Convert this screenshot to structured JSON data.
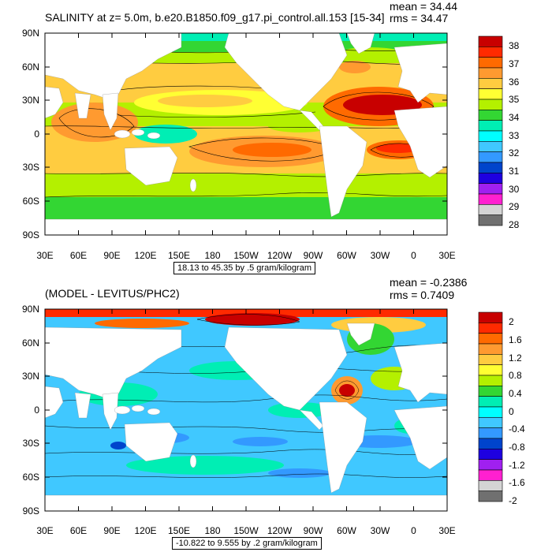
{
  "panels": [
    {
      "title": "SALINITY at z=   5.0m, b.e20.B1850.f09_g17.pi_control.all.153 [15-34]",
      "mean_text": "mean = 34.44",
      "rms_text": "rms = 34.47",
      "contour_info": "18.13 to 45.35 by .5 gram/kilogram",
      "lat_ticks": [
        "90N",
        "60N",
        "30N",
        "0",
        "30S",
        "60S",
        "90S"
      ],
      "lon_ticks": [
        "30E",
        "60E",
        "90E",
        "120E",
        "150E",
        "180",
        "150W",
        "120W",
        "90W",
        "60W",
        "30W",
        "0",
        "30E"
      ],
      "colorbar_labels": [
        "38",
        "37",
        "36",
        "35",
        "34",
        "33",
        "32",
        "31",
        "30",
        "29",
        "28"
      ],
      "colorbar_colors": [
        "#c80000",
        "#ff2a00",
        "#ff6a00",
        "#ff9a30",
        "#ffcc40",
        "#ffff33",
        "#b4f000",
        "#33d633",
        "#00eeb4",
        "#00ffff",
        "#40c8ff",
        "#3399ff",
        "#0044cc",
        "#1e00e0",
        "#a020f0",
        "#ff20d0",
        "#d4d4d4",
        "#707070"
      ]
    },
    {
      "title": "(MODEL - LEVITUS/PHC2)",
      "mean_text": "mean = -0.2386",
      "rms_text": "rms = 0.7409",
      "contour_info": "-10.822 to 9.555 by .2 gram/kilogram",
      "lat_ticks": [
        "90N",
        "60N",
        "30N",
        "0",
        "30S",
        "60S",
        "90S"
      ],
      "lon_ticks": [
        "30E",
        "60E",
        "90E",
        "120E",
        "150E",
        "180",
        "150W",
        "120W",
        "90W",
        "60W",
        "30W",
        "0",
        "30E"
      ],
      "colorbar_labels": [
        "2",
        "1.6",
        "1.2",
        "0.8",
        "0.4",
        "0",
        "-0.4",
        "-0.8",
        "-1.2",
        "-1.6",
        "-2"
      ],
      "colorbar_colors": [
        "#c80000",
        "#ff2a00",
        "#ff6a00",
        "#ff9a30",
        "#ffcc40",
        "#ffff33",
        "#b4f000",
        "#33d633",
        "#00eeb4",
        "#00ffff",
        "#40c8ff",
        "#3399ff",
        "#0044cc",
        "#1e00e0",
        "#a020f0",
        "#ff20d0",
        "#d4d4d4",
        "#707070"
      ]
    }
  ]
}
